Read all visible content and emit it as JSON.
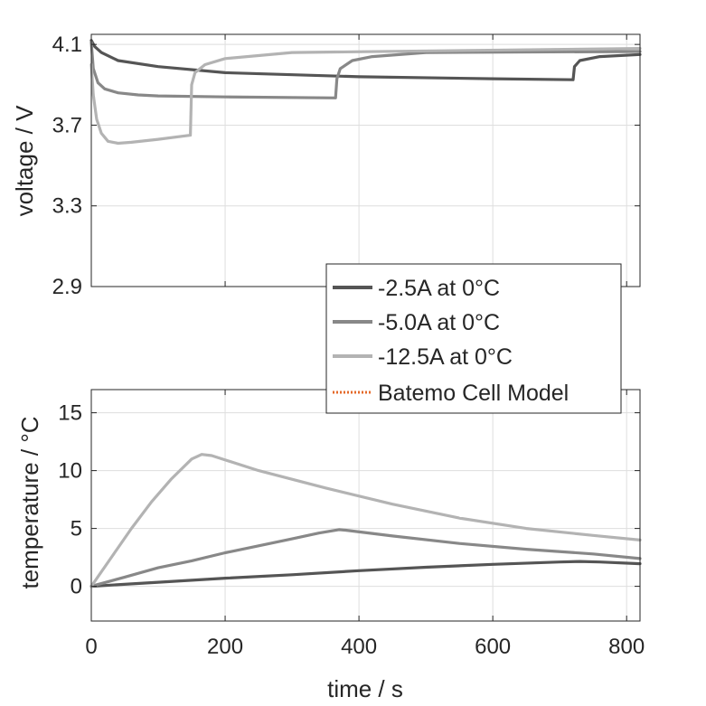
{
  "chart_data": [
    {
      "type": "line",
      "ylabel": "voltage / V",
      "xlabel": "",
      "xlim": [
        0,
        820
      ],
      "ylim": [
        2.9,
        4.15
      ],
      "yticks": [
        2.9,
        3.3,
        3.7,
        4.1
      ],
      "ytick_labels": [
        "2.9",
        "3.3",
        "3.7",
        "4.1"
      ],
      "xticks": [
        0,
        200,
        400,
        600,
        800
      ],
      "grid": true,
      "legend_placement": "bottom-right",
      "series": [
        {
          "name": "-2.5A at 0°C",
          "color": "#555555",
          "x": [
            0,
            5,
            15,
            40,
            100,
            200,
            400,
            600,
            720,
            722,
            730,
            760,
            820
          ],
          "y": [
            4.12,
            4.09,
            4.06,
            4.02,
            3.99,
            3.96,
            3.94,
            3.93,
            3.925,
            3.99,
            4.02,
            4.04,
            4.05
          ]
        },
        {
          "name": "-5.0A at 0°C",
          "color": "#888888",
          "x": [
            0,
            3,
            10,
            20,
            40,
            70,
            100,
            200,
            365,
            367,
            372,
            390,
            420,
            500,
            820
          ],
          "y": [
            4.11,
            3.98,
            3.91,
            3.88,
            3.86,
            3.85,
            3.845,
            3.84,
            3.835,
            3.93,
            3.98,
            4.02,
            4.04,
            4.06,
            4.065
          ]
        },
        {
          "name": "-12.5A at 0°C",
          "color": "#b3b3b3",
          "x": [
            0,
            3,
            8,
            15,
            25,
            40,
            60,
            100,
            148,
            150,
            155,
            170,
            200,
            300,
            820
          ],
          "y": [
            4.0,
            3.85,
            3.73,
            3.66,
            3.62,
            3.61,
            3.615,
            3.63,
            3.65,
            3.9,
            3.96,
            4.0,
            4.03,
            4.06,
            4.08
          ]
        }
      ]
    },
    {
      "type": "line",
      "ylabel": "temperature / °C",
      "xlabel": "time / s",
      "xlim": [
        0,
        820
      ],
      "ylim": [
        -3,
        17
      ],
      "yticks": [
        0,
        5,
        10,
        15
      ],
      "ytick_labels": [
        "0",
        "5",
        "10",
        "15"
      ],
      "xticks": [
        0,
        200,
        400,
        600,
        800
      ],
      "xtick_labels": [
        "0",
        "200",
        "400",
        "600",
        "800"
      ],
      "grid": true,
      "series": [
        {
          "name": "-2.5A at 0°C",
          "color": "#555555",
          "x": [
            0,
            100,
            200,
            300,
            400,
            500,
            600,
            700,
            730,
            760,
            820
          ],
          "y": [
            0,
            0.35,
            0.7,
            1.0,
            1.35,
            1.65,
            1.9,
            2.1,
            2.15,
            2.1,
            1.95
          ]
        },
        {
          "name": "-5.0A at 0°C",
          "color": "#888888",
          "x": [
            0,
            50,
            100,
            150,
            200,
            250,
            300,
            340,
            370,
            380,
            450,
            550,
            650,
            750,
            820
          ],
          "y": [
            0,
            0.8,
            1.6,
            2.2,
            2.9,
            3.5,
            4.1,
            4.6,
            4.9,
            4.85,
            4.35,
            3.7,
            3.2,
            2.8,
            2.4
          ]
        },
        {
          "name": "-12.5A at 0°C",
          "color": "#b3b3b3",
          "x": [
            0,
            30,
            60,
            90,
            120,
            150,
            165,
            180,
            250,
            350,
            450,
            550,
            650,
            750,
            820
          ],
          "y": [
            0,
            2.5,
            5.0,
            7.3,
            9.3,
            11.0,
            11.4,
            11.3,
            10.0,
            8.5,
            7.1,
            5.9,
            5.0,
            4.4,
            4.0
          ]
        }
      ]
    }
  ],
  "legend": {
    "items": [
      {
        "label": "-2.5A at 0°C",
        "color": "#555555",
        "style": "solid"
      },
      {
        "label": "-5.0A at 0°C",
        "color": "#888888",
        "style": "solid"
      },
      {
        "label": "-12.5A at 0°C",
        "color": "#b3b3b3",
        "style": "solid"
      },
      {
        "label": "Batemo Cell Model",
        "color": "#e46a2a",
        "style": "dotted"
      }
    ]
  }
}
